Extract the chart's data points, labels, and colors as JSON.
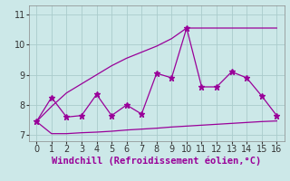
{
  "xlabel": "Windchill (Refroidissement éolien,°C)",
  "xlim": [
    -0.5,
    16.5
  ],
  "ylim": [
    6.8,
    11.3
  ],
  "yticks": [
    7,
    8,
    9,
    10,
    11
  ],
  "xticks": [
    0,
    1,
    2,
    3,
    4,
    5,
    6,
    7,
    8,
    9,
    10,
    11,
    12,
    13,
    14,
    15,
    16
  ],
  "line_color": "#990099",
  "bg_color": "#cce8e8",
  "grid_color": "#aacccc",
  "xlabel_color": "#990099",
  "xlabel_fontsize": 7.5,
  "tick_fontsize": 7,
  "jagged_x": [
    0,
    1,
    2,
    3,
    4,
    5,
    6,
    7,
    8,
    9,
    10,
    11,
    12,
    13,
    14,
    15,
    16
  ],
  "jagged_y": [
    7.45,
    8.25,
    7.6,
    7.65,
    8.35,
    7.65,
    8.0,
    7.7,
    9.05,
    8.9,
    10.55,
    8.6,
    8.6,
    9.1,
    8.9,
    8.3,
    7.65
  ],
  "rise_x": [
    0,
    1,
    2,
    3,
    4,
    5,
    6,
    7,
    8,
    9,
    10,
    11,
    12,
    13,
    14,
    15,
    16
  ],
  "rise_y": [
    7.45,
    7.95,
    8.4,
    8.7,
    9.0,
    9.3,
    9.55,
    9.75,
    9.95,
    10.2,
    10.55,
    10.55,
    10.55,
    10.55,
    10.55,
    10.55,
    10.55
  ],
  "flat_x": [
    0,
    1,
    2,
    3,
    4,
    5,
    6,
    7,
    8,
    9,
    10,
    11,
    12,
    13,
    14,
    15,
    16
  ],
  "flat_y": [
    7.45,
    7.05,
    7.05,
    7.08,
    7.1,
    7.13,
    7.17,
    7.2,
    7.23,
    7.27,
    7.3,
    7.33,
    7.36,
    7.39,
    7.42,
    7.45,
    7.47
  ]
}
